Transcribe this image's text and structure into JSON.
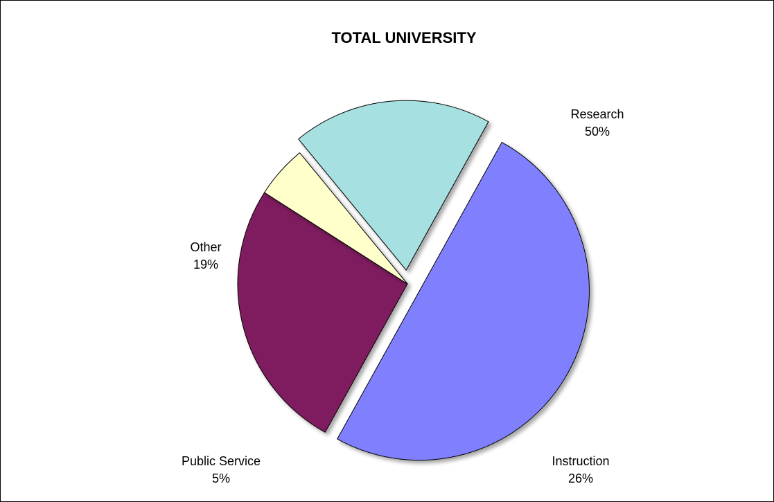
{
  "chart_data": {
    "type": "pie",
    "title": "TOTAL UNIVERSITY",
    "slices": [
      {
        "name": "Research",
        "value_label": "50%",
        "value": 50,
        "color": "#8080ff",
        "exploded": true
      },
      {
        "name": "Instruction",
        "value_label": "26%",
        "value": 26,
        "color": "#7f1f5f",
        "exploded": false
      },
      {
        "name": "Public Service",
        "value_label": "5%",
        "value": 5,
        "color": "#ffffcc",
        "exploded": false
      },
      {
        "name": "Other",
        "value_label": "19%",
        "value": 19,
        "color": "#a6e0e0",
        "exploded": true
      }
    ],
    "legend": "none",
    "labels": "outside"
  }
}
